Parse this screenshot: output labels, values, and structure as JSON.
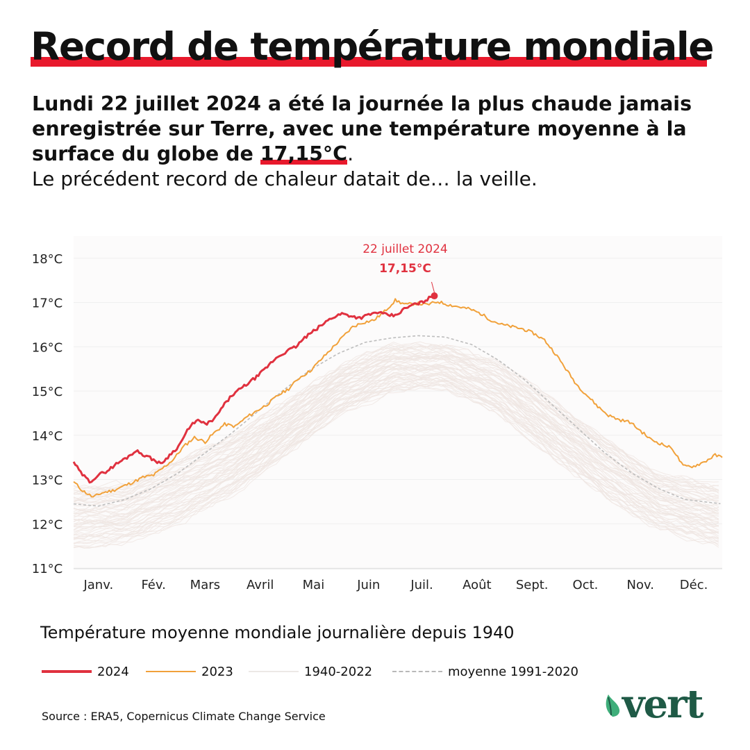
{
  "header": {
    "title": "Record de température mondiale",
    "intro_bold_1": "Lundi 22 juillet 2024 a été la journée la plus chaude jamais enregistrée sur Terre, avec une température moyenne à la surface du globe de ",
    "intro_highlight": "17,15°C",
    "intro_bold_end": ".",
    "intro_regular": "Le précédent record de chaleur datait de… la veille."
  },
  "colors": {
    "accent_red": "#e8192c",
    "series_2024": "#e0313f",
    "series_2023": "#f1a13a",
    "historical": "#f1ebe8",
    "mean": "#c8c8c8",
    "brand_green": "#1f5a46"
  },
  "chart_data": {
    "type": "line",
    "title": "Température moyenne mondiale journalière depuis 1940",
    "xlabel": "",
    "ylabel": "",
    "ylim": [
      11,
      18.5
    ],
    "y_ticks": [
      "11°C",
      "12°C",
      "13°C",
      "14°C",
      "15°C",
      "16°C",
      "17°C",
      "18°C"
    ],
    "y_tick_values": [
      11,
      12,
      13,
      14,
      15,
      16,
      17,
      18
    ],
    "x_ticks": [
      "Janv.",
      "Fév.",
      "Mars",
      "Avril",
      "Mai",
      "Juin",
      "Juil.",
      "Août",
      "Sept.",
      "Oct.",
      "Nov.",
      "Déc."
    ],
    "x_tick_days": [
      15,
      46,
      75,
      106,
      136,
      167,
      197,
      228,
      259,
      289,
      320,
      350
    ],
    "grid": true,
    "series": [
      {
        "name": "2024",
        "x": [
          1,
          5,
          10,
          15,
          20,
          25,
          31,
          36,
          41,
          46,
          50,
          55,
          60,
          65,
          70,
          75,
          80,
          85,
          90,
          95,
          100,
          105,
          110,
          115,
          121,
          126,
          131,
          136,
          141,
          146,
          152,
          157,
          162,
          167,
          172,
          177,
          182,
          187,
          192,
          197,
          201,
          204
        ],
        "values": [
          13.4,
          13.15,
          12.95,
          13.1,
          13.2,
          13.35,
          13.5,
          13.65,
          13.55,
          13.45,
          13.35,
          13.55,
          13.75,
          14.1,
          14.35,
          14.25,
          14.35,
          14.65,
          14.9,
          15.05,
          15.2,
          15.35,
          15.55,
          15.75,
          15.9,
          16.0,
          16.2,
          16.35,
          16.5,
          16.65,
          16.75,
          16.7,
          16.65,
          16.72,
          16.78,
          16.72,
          16.7,
          16.85,
          16.95,
          17.0,
          17.1,
          17.15
        ]
      },
      {
        "name": "2023",
        "x": [
          1,
          6,
          12,
          17,
          23,
          29,
          35,
          40,
          46,
          51,
          57,
          63,
          69,
          75,
          80,
          86,
          92,
          98,
          104,
          110,
          116,
          122,
          128,
          134,
          140,
          146,
          152,
          158,
          164,
          170,
          176,
          182,
          188,
          194,
          200,
          206,
          212,
          218,
          224,
          230,
          236,
          242,
          248,
          254,
          260,
          266,
          272,
          278,
          284,
          290,
          296,
          302,
          308,
          314,
          320,
          326,
          332,
          338,
          344,
          350,
          356,
          362,
          366
        ],
        "values": [
          12.95,
          12.75,
          12.6,
          12.7,
          12.75,
          12.85,
          12.95,
          13.05,
          13.1,
          13.25,
          13.45,
          13.75,
          13.95,
          13.85,
          14.05,
          14.25,
          14.2,
          14.4,
          14.55,
          14.7,
          14.9,
          15.05,
          15.3,
          15.45,
          15.7,
          15.95,
          16.2,
          16.45,
          16.55,
          16.6,
          16.8,
          17.05,
          16.95,
          16.98,
          16.95,
          17.02,
          16.95,
          16.9,
          16.85,
          16.75,
          16.6,
          16.5,
          16.45,
          16.4,
          16.3,
          16.15,
          15.85,
          15.5,
          15.15,
          14.9,
          14.65,
          14.45,
          14.35,
          14.3,
          14.1,
          13.9,
          13.8,
          13.7,
          13.3,
          13.3,
          13.4,
          13.55,
          13.5
        ]
      },
      {
        "name": "moyenne 1991-2020",
        "x": [
          1,
          15,
          30,
          45,
          60,
          75,
          90,
          105,
          120,
          135,
          150,
          165,
          180,
          195,
          210,
          225,
          240,
          255,
          270,
          285,
          300,
          315,
          330,
          345,
          366
        ],
        "values": [
          12.45,
          12.4,
          12.55,
          12.8,
          13.15,
          13.6,
          14.05,
          14.55,
          15.05,
          15.5,
          15.85,
          16.1,
          16.2,
          16.25,
          16.22,
          16.05,
          15.7,
          15.25,
          14.7,
          14.15,
          13.6,
          13.15,
          12.8,
          12.55,
          12.45
        ]
      },
      {
        "name": "1940-2022",
        "x": [
          1,
          30,
          60,
          90,
          120,
          150,
          180,
          210,
          240,
          270,
          300,
          330,
          366
        ],
        "values_low": [
          11.45,
          11.6,
          12.0,
          12.65,
          13.55,
          14.45,
          15.0,
          15.05,
          14.5,
          13.5,
          12.6,
          11.9,
          11.5
        ],
        "values_high": [
          12.85,
          12.9,
          13.5,
          14.0,
          14.75,
          15.55,
          16.05,
          16.05,
          15.65,
          14.85,
          13.95,
          13.15,
          12.85
        ]
      }
    ],
    "annotations": [
      {
        "x": 204,
        "y": 17.15,
        "label_date": "22 juillet 2024",
        "label_value": "17,15°C"
      }
    ],
    "legend": [
      {
        "label": "2024",
        "style": "solid-thick-red"
      },
      {
        "label": "2023",
        "style": "solid-orange"
      },
      {
        "label": "1940-2022",
        "style": "solid-light"
      },
      {
        "label": "moyenne 1991-2020",
        "style": "dashed-grey"
      }
    ],
    "legend_placement": "bottom"
  },
  "footer": {
    "source": "Source : ERA5, Copernicus Climate Change Service",
    "logo_text": "vert"
  }
}
